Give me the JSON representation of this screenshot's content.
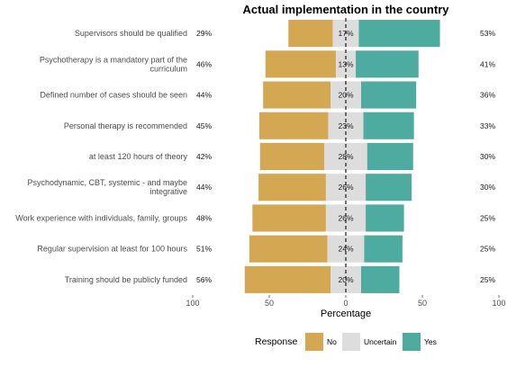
{
  "chart_data": {
    "type": "bar",
    "orientation": "horizontal-diverging",
    "title": "Actual implementation in the country",
    "xlabel": "Percentage",
    "xlim": [
      -100,
      100
    ],
    "xticks": [
      -100,
      -50,
      0,
      50,
      100
    ],
    "xtick_labels": [
      "100",
      "50",
      "0",
      "50",
      "100"
    ],
    "grid": false,
    "legend": {
      "title": "Response",
      "position": "bottom",
      "entries": [
        {
          "name": "No",
          "color": "#D4A853"
        },
        {
          "name": "Uncertain",
          "color": "#DDDDDD"
        },
        {
          "name": "Yes",
          "color": "#4EABA0"
        }
      ]
    },
    "categories": [
      [
        "Supervisors should be qualified"
      ],
      [
        "Psychotherapy is a mandatory part of the",
        "curriculum"
      ],
      [
        "Defined number of cases should be seen"
      ],
      [
        "Personal therapy is recommended"
      ],
      [
        "at least 120 hours of theory"
      ],
      [
        "Psychodynamic, CBT, systemic - and maybe",
        "integrative"
      ],
      [
        "Work experience with individuals, family, groups"
      ],
      [
        "Regular supervision at least for 100 hours"
      ],
      [
        "Training should be publicly funded"
      ]
    ],
    "series": [
      {
        "name": "No",
        "values": [
          29,
          46,
          44,
          45,
          42,
          44,
          48,
          51,
          56
        ]
      },
      {
        "name": "Uncertain",
        "values": [
          17,
          13,
          20,
          23,
          28,
          26,
          26,
          24,
          20
        ]
      },
      {
        "name": "Yes",
        "values": [
          53,
          41,
          36,
          33,
          30,
          30,
          25,
          25,
          25
        ]
      }
    ],
    "labels": {
      "No": [
        "29%",
        "46%",
        "44%",
        "45%",
        "42%",
        "44%",
        "48%",
        "51%",
        "56%"
      ],
      "Uncertain": [
        "17%",
        "13%",
        "20%",
        "23%",
        "28%",
        "26%",
        "26%",
        "24%",
        "20%"
      ],
      "Yes": [
        "53%",
        "41%",
        "36%",
        "33%",
        "30%",
        "30%",
        "25%",
        "25%",
        "25%"
      ]
    }
  }
}
